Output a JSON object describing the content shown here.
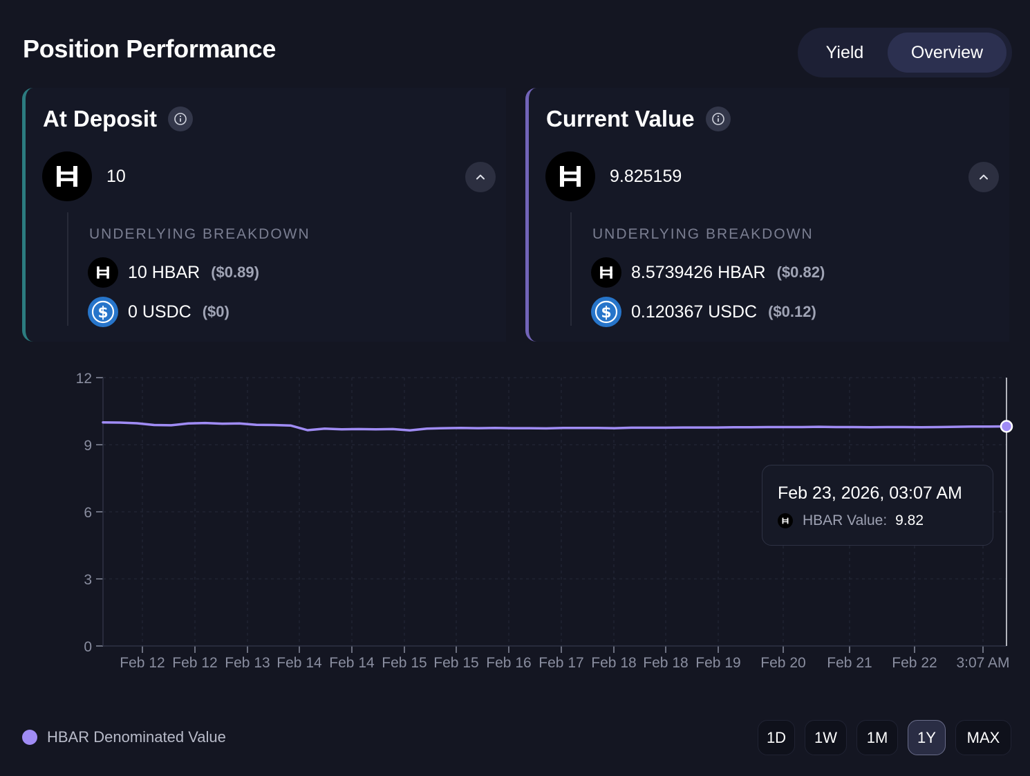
{
  "header": {
    "title": "Position Performance",
    "tabs": [
      {
        "label": "Yield",
        "active": false
      },
      {
        "label": "Overview",
        "active": true
      }
    ]
  },
  "cards": {
    "deposit": {
      "title": "At Deposit",
      "amount": "10",
      "breakdown_label": "UNDERLYING BREAKDOWN",
      "rows": [
        {
          "token": "hbar-icon",
          "amount": "10 HBAR",
          "usd": "($0.89)"
        },
        {
          "token": "usdc-icon",
          "amount": "0 USDC",
          "usd": "($0)"
        }
      ]
    },
    "current": {
      "title": "Current Value",
      "amount": "9.825159",
      "breakdown_label": "UNDERLYING BREAKDOWN",
      "rows": [
        {
          "token": "hbar-icon",
          "amount": "8.5739426 HBAR",
          "usd": "($0.82)"
        },
        {
          "token": "usdc-icon",
          "amount": "0.120367 USDC",
          "usd": "($0.12)"
        }
      ]
    }
  },
  "chart_data": {
    "type": "line",
    "y_ticks": [
      "12",
      "9",
      "6",
      "3",
      "0"
    ],
    "ylim": [
      0,
      12
    ],
    "x_ticks": [
      "Feb 12",
      "Feb 12",
      "Feb 13",
      "Feb 14",
      "Feb 14",
      "Feb 15",
      "Feb 15",
      "Feb 16",
      "Feb 17",
      "Feb 18",
      "Feb 18",
      "Feb 19",
      "Feb 20",
      "Feb 21",
      "Feb 22",
      "3:07 AM"
    ],
    "series": [
      {
        "name": "HBAR Denominated Value",
        "color": "#a08cf5",
        "values": [
          10.0,
          9.99,
          9.96,
          9.88,
          9.87,
          9.95,
          9.97,
          9.94,
          9.95,
          9.89,
          9.88,
          9.86,
          9.65,
          9.72,
          9.69,
          9.7,
          9.69,
          9.7,
          9.64,
          9.72,
          9.74,
          9.75,
          9.74,
          9.75,
          9.74,
          9.74,
          9.73,
          9.75,
          9.75,
          9.75,
          9.74,
          9.76,
          9.76,
          9.76,
          9.77,
          9.77,
          9.77,
          9.78,
          9.78,
          9.79,
          9.79,
          9.79,
          9.8,
          9.79,
          9.79,
          9.78,
          9.79,
          9.79,
          9.78,
          9.79,
          9.8,
          9.81,
          9.81,
          9.82
        ]
      }
    ],
    "grid": true
  },
  "tooltip": {
    "date": "Feb 23, 2026, 03:07 AM",
    "label": "HBAR Value:",
    "value": "9.82"
  },
  "legend": {
    "label": "HBAR Denominated Value",
    "color": "#a08cf5"
  },
  "ranges": [
    {
      "label": "1D",
      "active": false
    },
    {
      "label": "1W",
      "active": false
    },
    {
      "label": "1M",
      "active": false
    },
    {
      "label": "1Y",
      "active": true
    },
    {
      "label": "MAX",
      "active": false
    }
  ]
}
